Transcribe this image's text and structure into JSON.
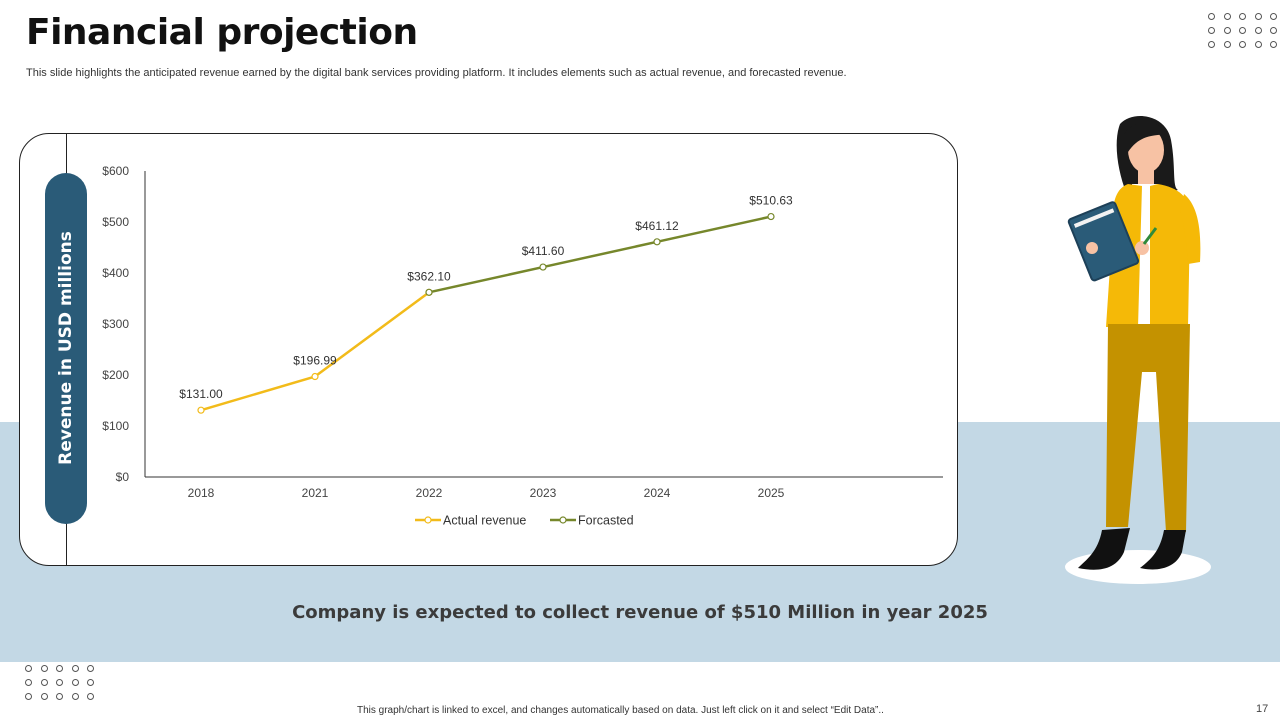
{
  "slide": {
    "title": "Financial projection",
    "subtitle": "This slide highlights the anticipated revenue earned by the digital bank services providing platform. It includes elements such as actual revenue, and forecasted revenue.",
    "callout": "Company is expected to collect revenue of $510 Million in year 2025",
    "footer_note": "This graph/chart is linked to excel, and changes automatically based on data. Just left click on it and select “Edit Data”..",
    "page_number": "17"
  },
  "colors": {
    "actual": "#f2bb1a",
    "forecast": "#76872b",
    "band": "#c3d8e5",
    "pill": "#2a5b78"
  },
  "chart_data": {
    "type": "line",
    "title": "",
    "xlabel": "",
    "ylabel": "Revenue in USD millions",
    "categories": [
      "2018",
      "2021",
      "2022",
      "2023",
      "2024",
      "2025"
    ],
    "ylim": [
      0,
      600
    ],
    "yticks": [
      0,
      100,
      200,
      300,
      400,
      500,
      600
    ],
    "ytick_labels": [
      "$0",
      "$100",
      "$200",
      "$300",
      "$400",
      "$500",
      "$600"
    ],
    "legend_position": "bottom",
    "series": [
      {
        "name": "Actual revenue",
        "values": [
          131.0,
          196.99,
          362.1,
          null,
          null,
          null
        ],
        "labels": [
          "$131.00",
          "$196.99",
          "",
          "",
          "",
          ""
        ]
      },
      {
        "name": "Forcasted",
        "values": [
          null,
          null,
          362.1,
          411.6,
          461.12,
          510.63
        ],
        "labels": [
          "",
          "",
          "$362.10",
          "$411.60",
          "$461.12",
          "$510.63"
        ]
      }
    ]
  }
}
